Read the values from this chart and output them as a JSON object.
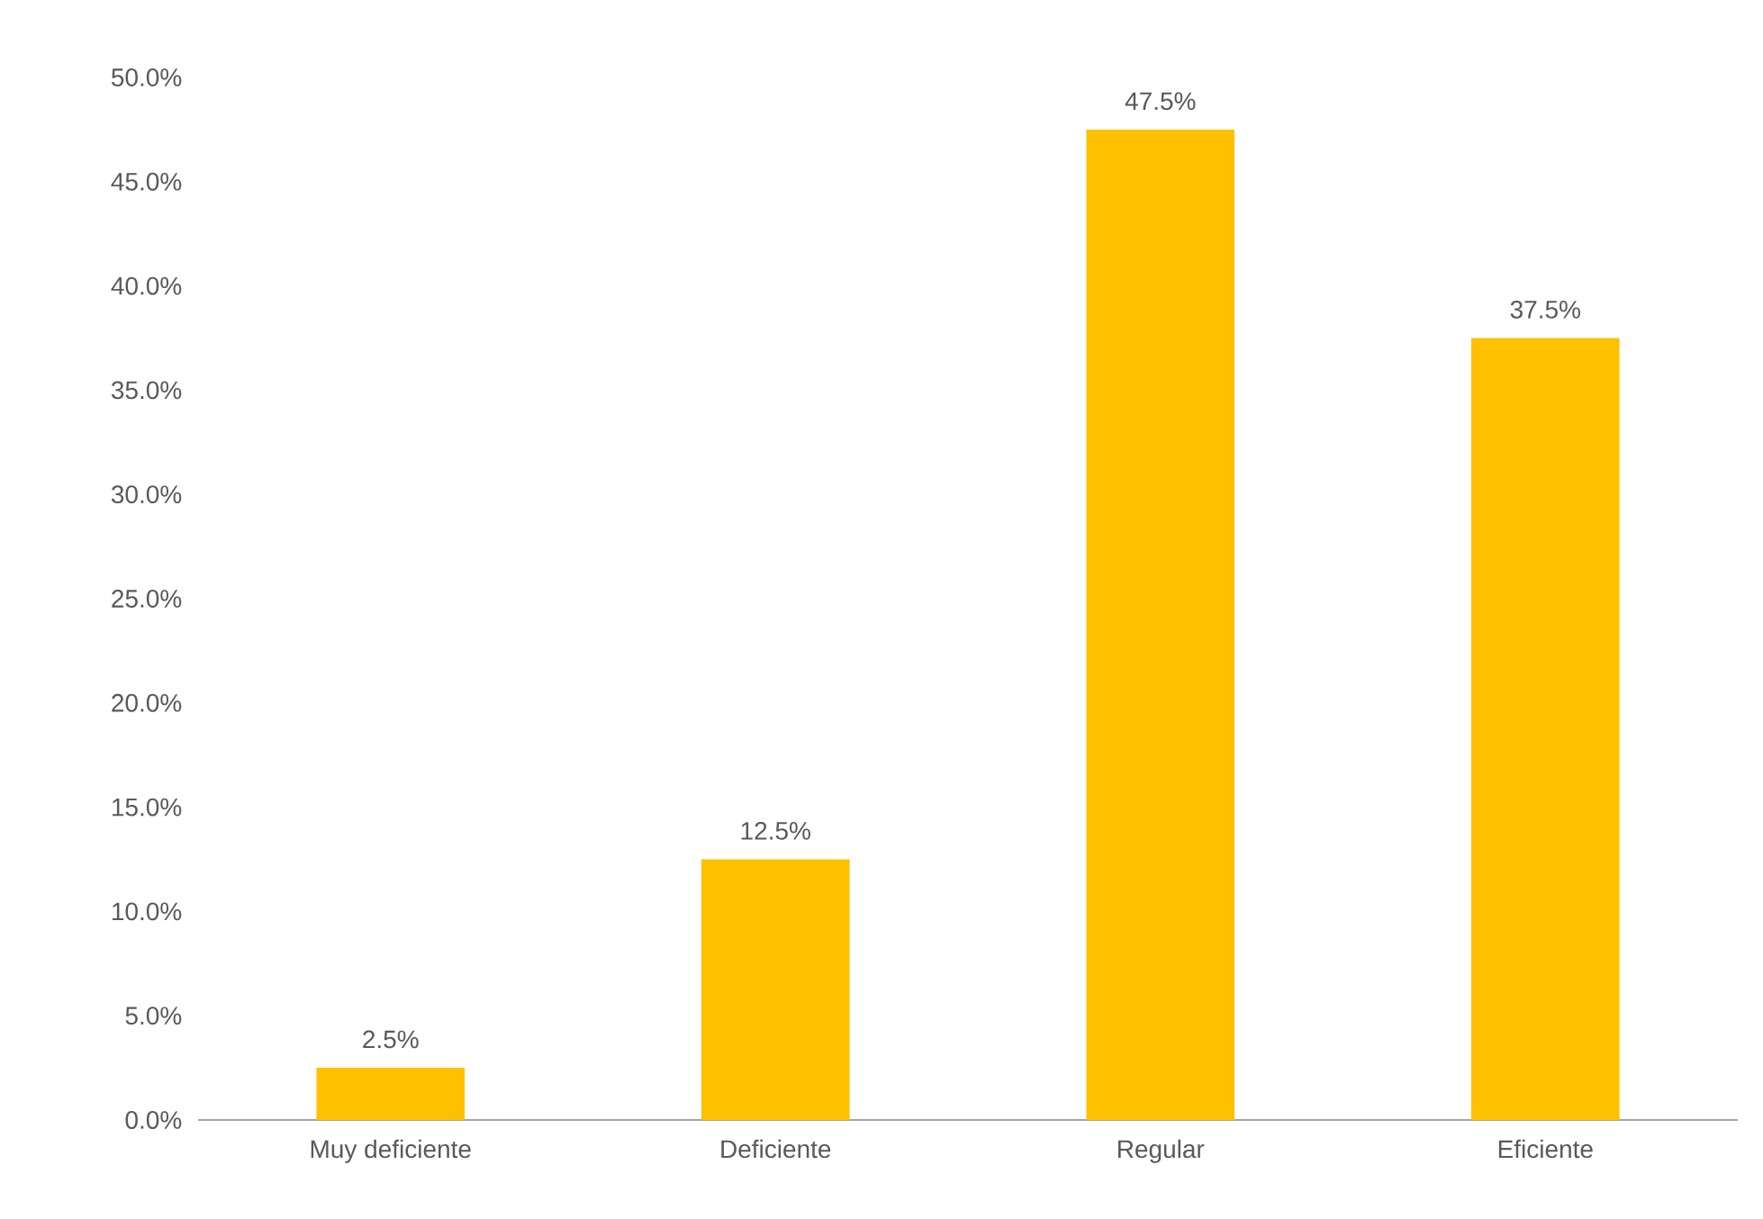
{
  "chart_data": {
    "type": "bar",
    "categories": [
      "Muy deficiente",
      "Deficiente",
      "Regular",
      "Eficiente"
    ],
    "values": [
      2.5,
      12.5,
      47.5,
      37.5
    ],
    "value_labels": [
      "2.5%",
      "12.5%",
      "47.5%",
      "37.5%"
    ],
    "color": "#ffc000",
    "ylim": [
      0,
      50
    ],
    "yticks": [
      {
        "value": 0,
        "label": "0.0%"
      },
      {
        "value": 5,
        "label": "5.0%"
      },
      {
        "value": 10,
        "label": "10.0%"
      },
      {
        "value": 15,
        "label": "15.0%"
      },
      {
        "value": 20,
        "label": "20.0%"
      },
      {
        "value": 25,
        "label": "25.0%"
      },
      {
        "value": 30,
        "label": "30.0%"
      },
      {
        "value": 35,
        "label": "35.0%"
      },
      {
        "value": 40,
        "label": "40.0%"
      },
      {
        "value": 45,
        "label": "45.0%"
      },
      {
        "value": 50,
        "label": "50.0%"
      }
    ],
    "grid": false
  }
}
